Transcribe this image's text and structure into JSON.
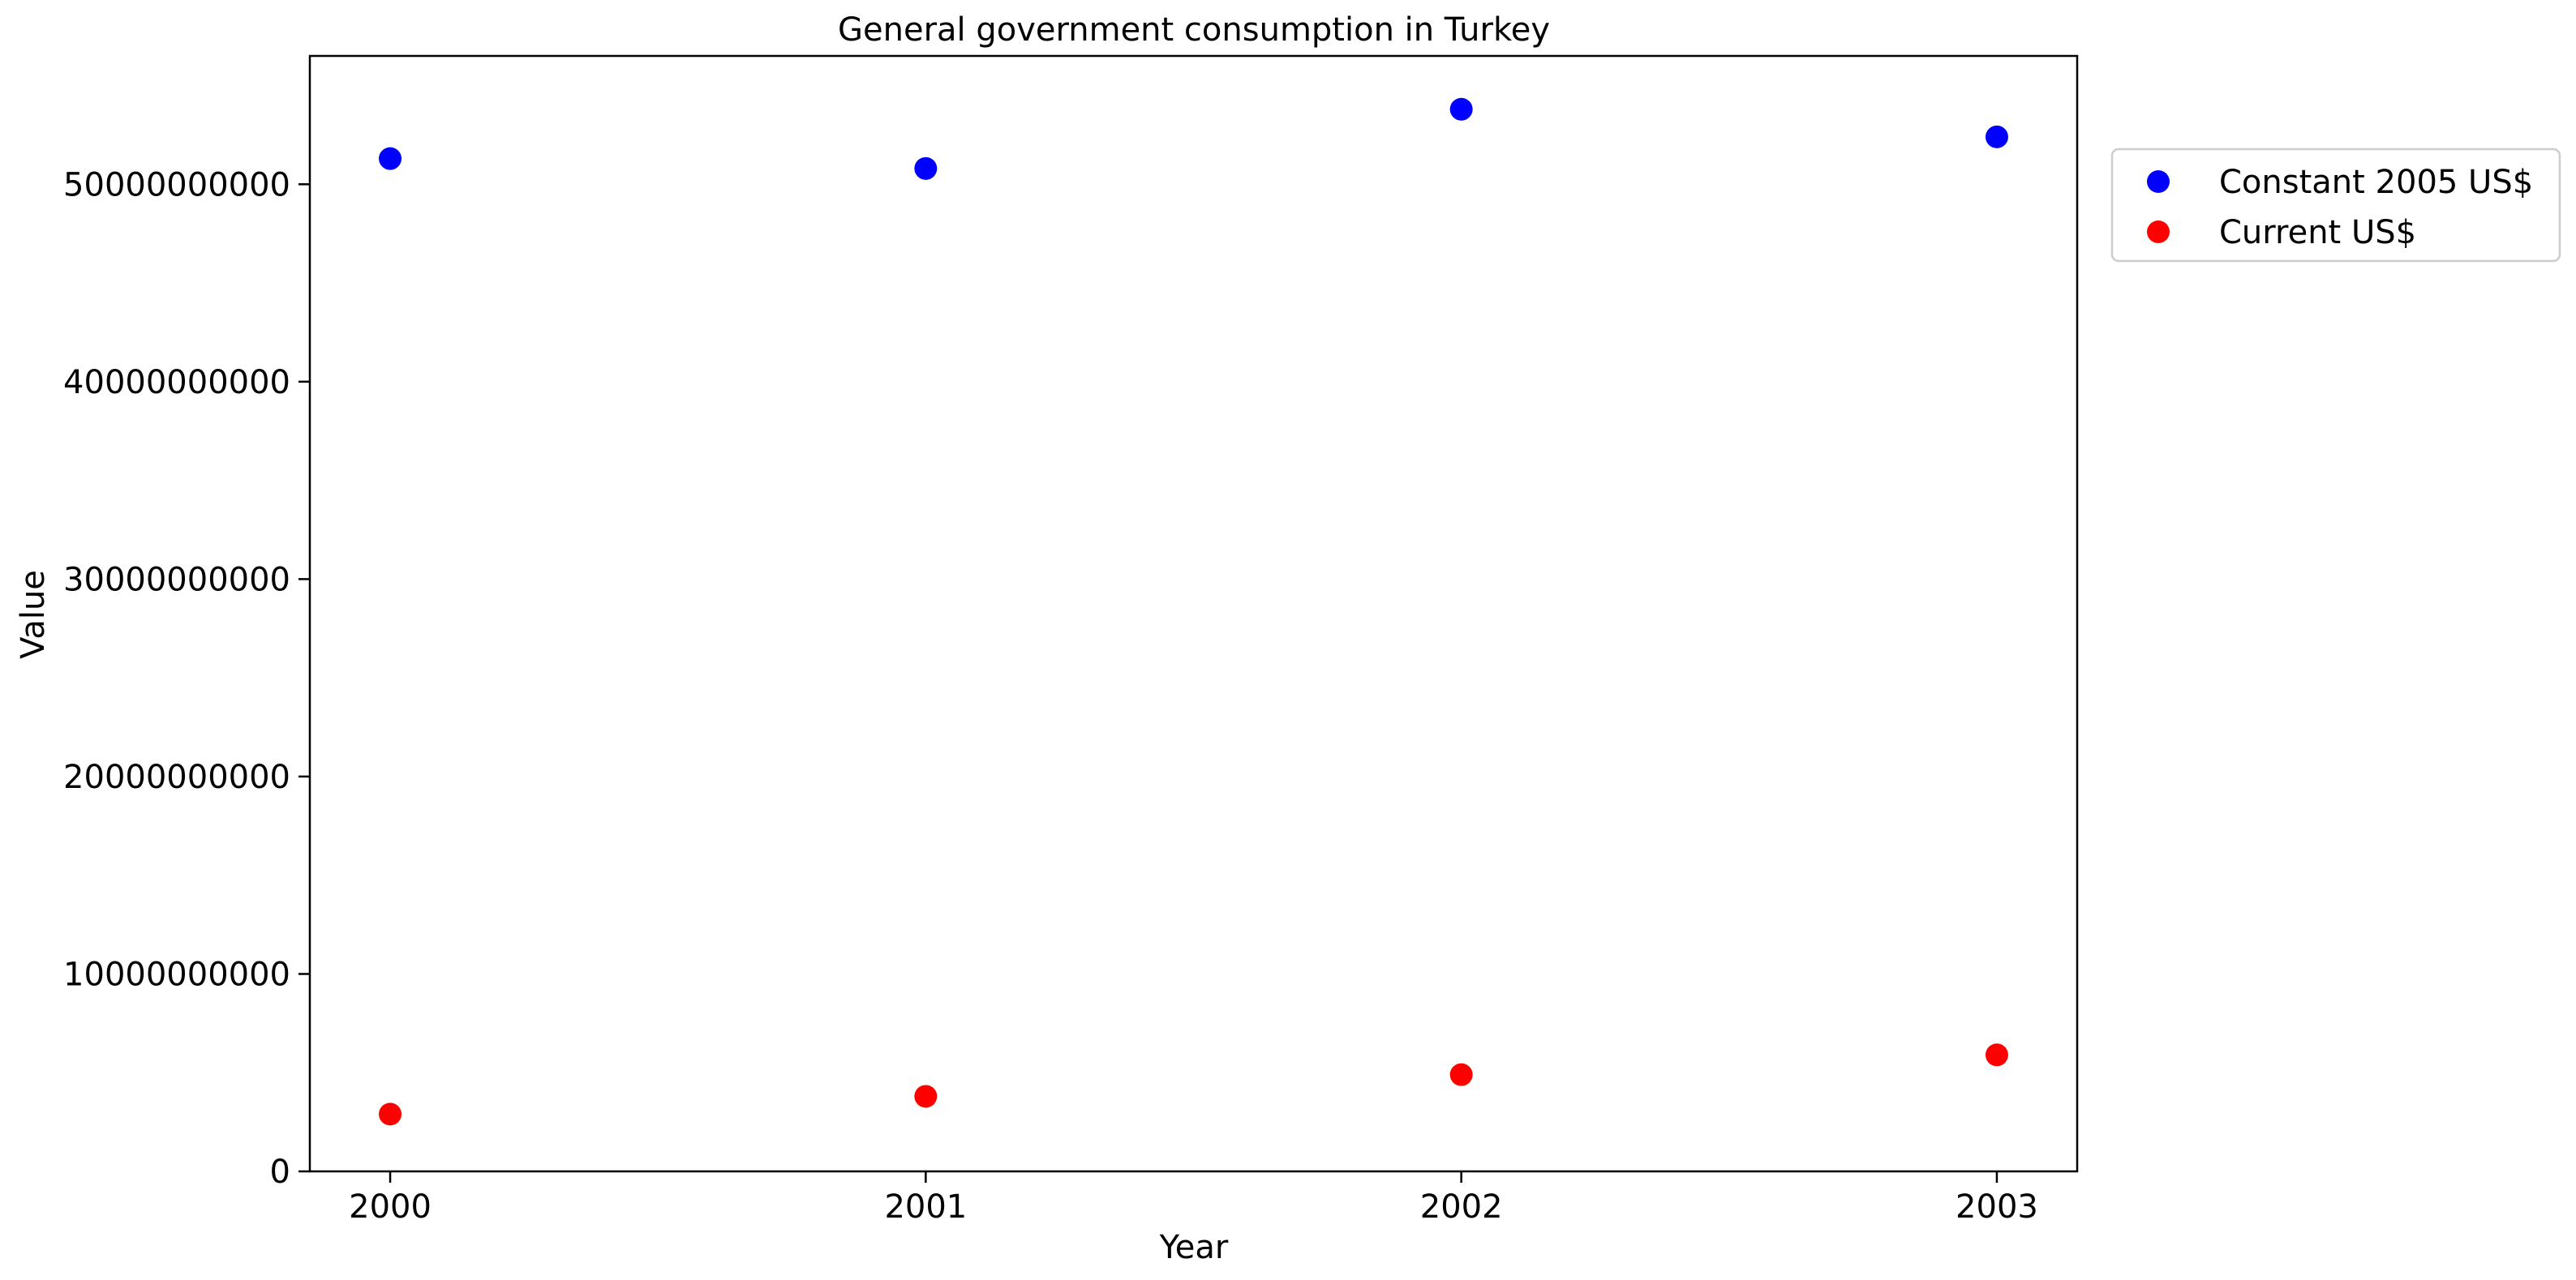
{
  "chart_data": {
    "type": "scatter",
    "title": "General government consumption in Turkey",
    "xlabel": "Year",
    "ylabel": "Value",
    "x": [
      2000,
      2001,
      2002,
      2003
    ],
    "x_tick_labels": [
      "2000",
      "2001",
      "2002",
      "2003"
    ],
    "xlim": [
      1999.85,
      2003.15
    ],
    "ylim": [
      0,
      56500000000
    ],
    "y_ticks": [
      0,
      10000000000,
      20000000000,
      30000000000,
      40000000000,
      50000000000
    ],
    "y_tick_labels": [
      "0",
      "10000000000",
      "20000000000",
      "30000000000",
      "40000000000",
      "50000000000"
    ],
    "grid": false,
    "legend_position": "outside-right-top",
    "series": [
      {
        "name": "Constant 2005 US$",
        "color": "#0000ff",
        "values": [
          51300000000,
          50800000000,
          53800000000,
          52400000000
        ]
      },
      {
        "name": "Current US$",
        "color": "#ff0000",
        "values": [
          2900000000,
          3800000000,
          4900000000,
          5900000000
        ]
      }
    ]
  }
}
